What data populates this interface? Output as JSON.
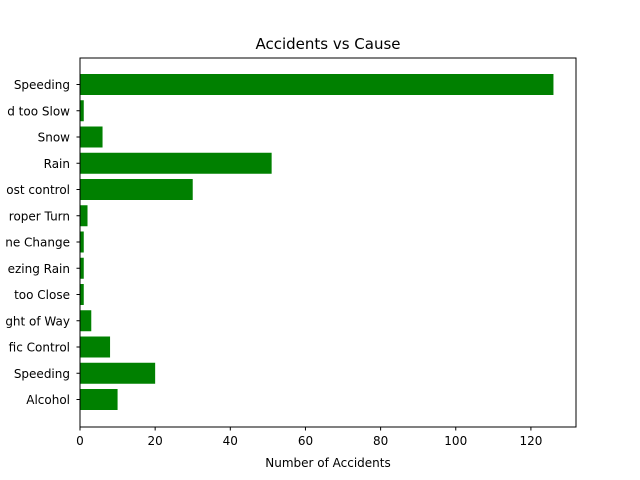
{
  "chart_data": {
    "type": "bar",
    "orientation": "horizontal",
    "title": "Accidents vs Cause",
    "xlabel": "Number of Accidents",
    "ylabel": "",
    "categories": [
      "Speeding",
      "d too Slow",
      "Snow",
      "Rain",
      "ost control",
      "roper Turn",
      "ne Change",
      "ezing Rain",
      "too Close",
      "ght of Way",
      "fic Control",
      "Speeding",
      "Alcohol"
    ],
    "values": [
      126,
      1,
      6,
      51,
      30,
      2,
      1,
      1,
      1,
      3,
      8,
      20,
      10
    ],
    "xlim": [
      0,
      132
    ],
    "xticks": [
      0,
      20,
      40,
      60,
      80,
      100,
      120
    ],
    "grid": false,
    "legend": "none",
    "bar_color": "#008000"
  }
}
